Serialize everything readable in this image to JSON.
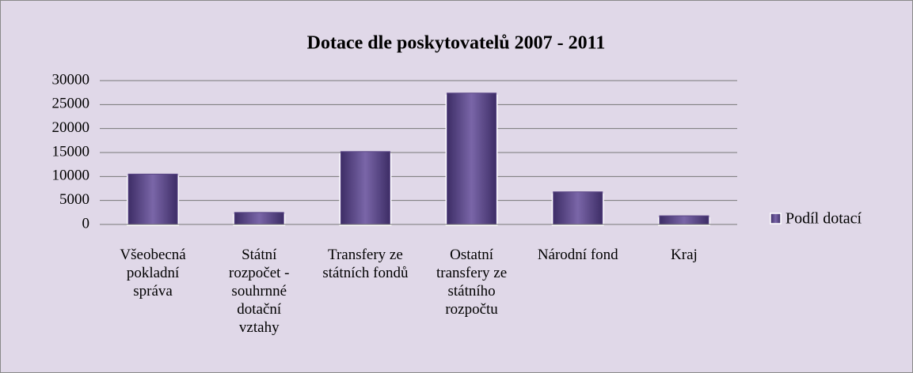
{
  "chart_data": {
    "type": "bar",
    "title": "Dotace dle poskytovatelů 2007 - 2011",
    "categories": [
      "Všeobecná pokladní správa",
      "Státní rozpočet - souhrnné dotační vztahy",
      "Transfery ze státních fondů",
      "Ostatní transfery ze státního rozpočtu",
      "Národní fond",
      "Kraj"
    ],
    "series": [
      {
        "name": "Podíl dotací",
        "color": "#5b4787",
        "values": [
          10500,
          2500,
          15200,
          27400,
          6800,
          1800
        ]
      }
    ],
    "ylim": [
      0,
      30000
    ],
    "yticks": [
      0,
      5000,
      10000,
      15000,
      20000,
      25000,
      30000
    ],
    "grid": true,
    "legend": "right"
  }
}
